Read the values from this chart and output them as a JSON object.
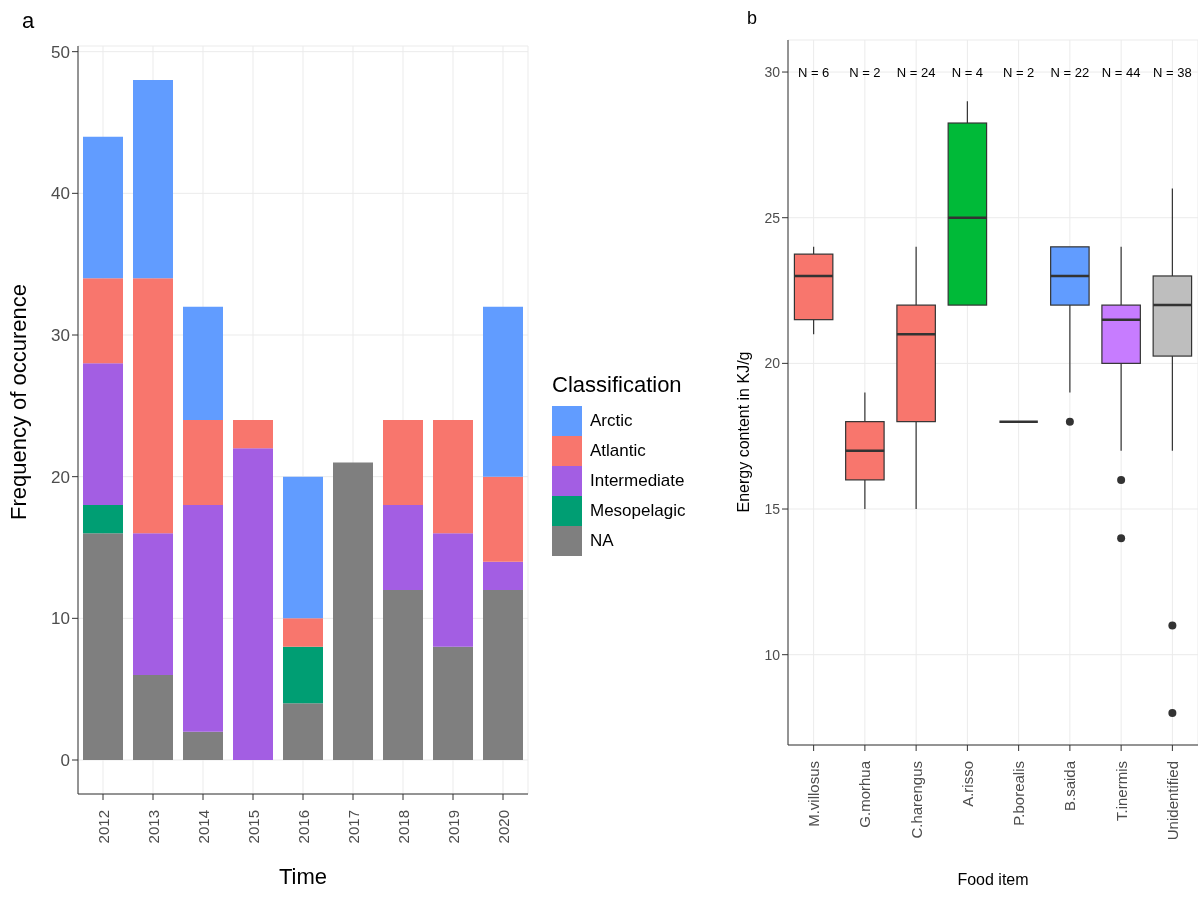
{
  "chart_data": [
    {
      "type": "bar",
      "title": "a",
      "xlabel": "Time",
      "ylabel": "Frequency of occurence",
      "legend_title": "Classification",
      "categories": [
        "2012",
        "2013",
        "2014",
        "2015",
        "2016",
        "2017",
        "2018",
        "2019",
        "2020"
      ],
      "stacked": true,
      "series": [
        {
          "name": "NA",
          "color": "#7f7f7f",
          "values": [
            16,
            6,
            2,
            null,
            4,
            21,
            12,
            8,
            12
          ]
        },
        {
          "name": "Mesopelagic",
          "color": "#009e73",
          "values": [
            2,
            null,
            null,
            null,
            4,
            null,
            null,
            null,
            null
          ]
        },
        {
          "name": "Intermediate",
          "color": "#a35ee3",
          "values": [
            10,
            10,
            16,
            22,
            null,
            null,
            6,
            8,
            2
          ]
        },
        {
          "name": "Atlantic",
          "color": "#f8766d",
          "values": [
            6,
            18,
            6,
            2,
            2,
            null,
            6,
            8,
            6
          ]
        },
        {
          "name": "Arctic",
          "color": "#619cff",
          "values": [
            10,
            14,
            8,
            null,
            10,
            null,
            null,
            null,
            12
          ]
        }
      ],
      "ylim": [
        -2.4,
        50.4
      ],
      "yticks": [
        0,
        10,
        20,
        30,
        40,
        50
      ],
      "grid": true,
      "legend": "right"
    },
    {
      "type": "box",
      "title": "b",
      "xlabel": "Food item",
      "ylabel": "Energy content in KJ/g",
      "categories": [
        "M.villosus",
        "G.morhua",
        "C.harengus",
        "A.risso",
        "P.borealis",
        "B.saida",
        "T.inermis",
        "Unidentified"
      ],
      "colors": [
        "#f8766d",
        "#f8766d",
        "#f8766d",
        "#00ba38",
        "#333333",
        "#619cff",
        "#c77cff",
        "#bebebe"
      ],
      "boxes": [
        {
          "low": 21,
          "q1": 21.5,
          "median": 23,
          "q3": 23.75,
          "high": 24
        },
        {
          "low": 15,
          "q1": 16,
          "median": 17,
          "q3": 18,
          "high": 19
        },
        {
          "low": 15,
          "q1": 18,
          "median": 21,
          "q3": 22,
          "high": 24
        },
        {
          "low": 22,
          "q1": 22,
          "median": 25,
          "q3": 28.25,
          "high": 29
        },
        {
          "low": 18,
          "q1": 18,
          "median": 18,
          "q3": 18,
          "high": 18
        },
        {
          "low": 19,
          "q1": 22,
          "median": 23,
          "q3": 24,
          "high": 24,
          "outliers": [
            18
          ]
        },
        {
          "low": 17,
          "q1": 20,
          "median": 21.5,
          "q3": 22,
          "high": 24,
          "outliers": [
            16,
            14
          ]
        },
        {
          "low": 17,
          "q1": 20.25,
          "median": 22,
          "q3": 23,
          "high": 26,
          "outliers": [
            11,
            8
          ]
        }
      ],
      "annotations": [
        "N = 6",
        "N = 2",
        "N = 24",
        "N = 4",
        "N = 2",
        "N = 22",
        "N = 44",
        "N = 38"
      ],
      "ylim": [
        6.9,
        31.1
      ],
      "yticks": [
        10,
        15,
        20,
        25,
        30
      ],
      "grid": true
    }
  ]
}
